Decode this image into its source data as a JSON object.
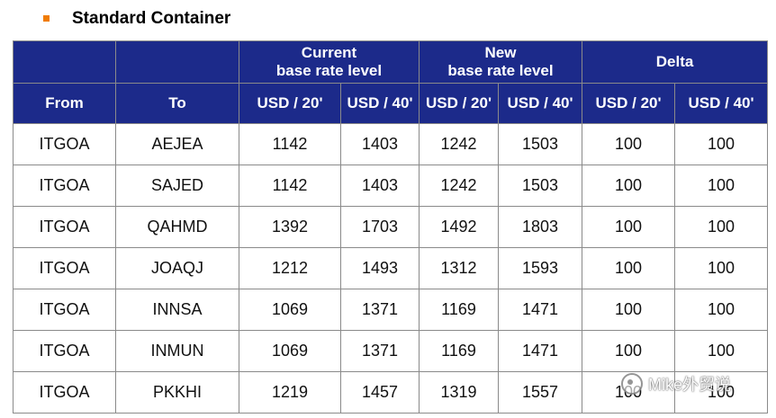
{
  "heading": "Standard Container",
  "colors": {
    "header_bg": "#1c2a8a",
    "bullet": "#f07c00"
  },
  "header": {
    "current": "Current\nbase rate level",
    "new": "New\nbase rate level",
    "delta": "Delta",
    "from": "From",
    "to": "To",
    "cur_20": "USD / 20'",
    "cur_40": "USD / 40'",
    "new_20": "USD / 20'",
    "new_40": "USD / 40'",
    "delta_20": "USD / 20'",
    "delta_40": "USD / 40'"
  },
  "rows": [
    [
      "ITGOA",
      "AEJEA",
      "1142",
      "1403",
      "1242",
      "1503",
      "100",
      "100"
    ],
    [
      "ITGOA",
      "SAJED",
      "1142",
      "1403",
      "1242",
      "1503",
      "100",
      "100"
    ],
    [
      "ITGOA",
      "QAHMD",
      "1392",
      "1703",
      "1492",
      "1803",
      "100",
      "100"
    ],
    [
      "ITGOA",
      "JOAQJ",
      "1212",
      "1493",
      "1312",
      "1593",
      "100",
      "100"
    ],
    [
      "ITGOA",
      "INNSA",
      "1069",
      "1371",
      "1169",
      "1471",
      "100",
      "100"
    ],
    [
      "ITGOA",
      "INMUN",
      "1069",
      "1371",
      "1169",
      "1471",
      "100",
      "100"
    ],
    [
      "ITGOA",
      "PKKHI",
      "1219",
      "1457",
      "1319",
      "1557",
      "100",
      "100"
    ]
  ],
  "watermark": "Mike外贸说"
}
